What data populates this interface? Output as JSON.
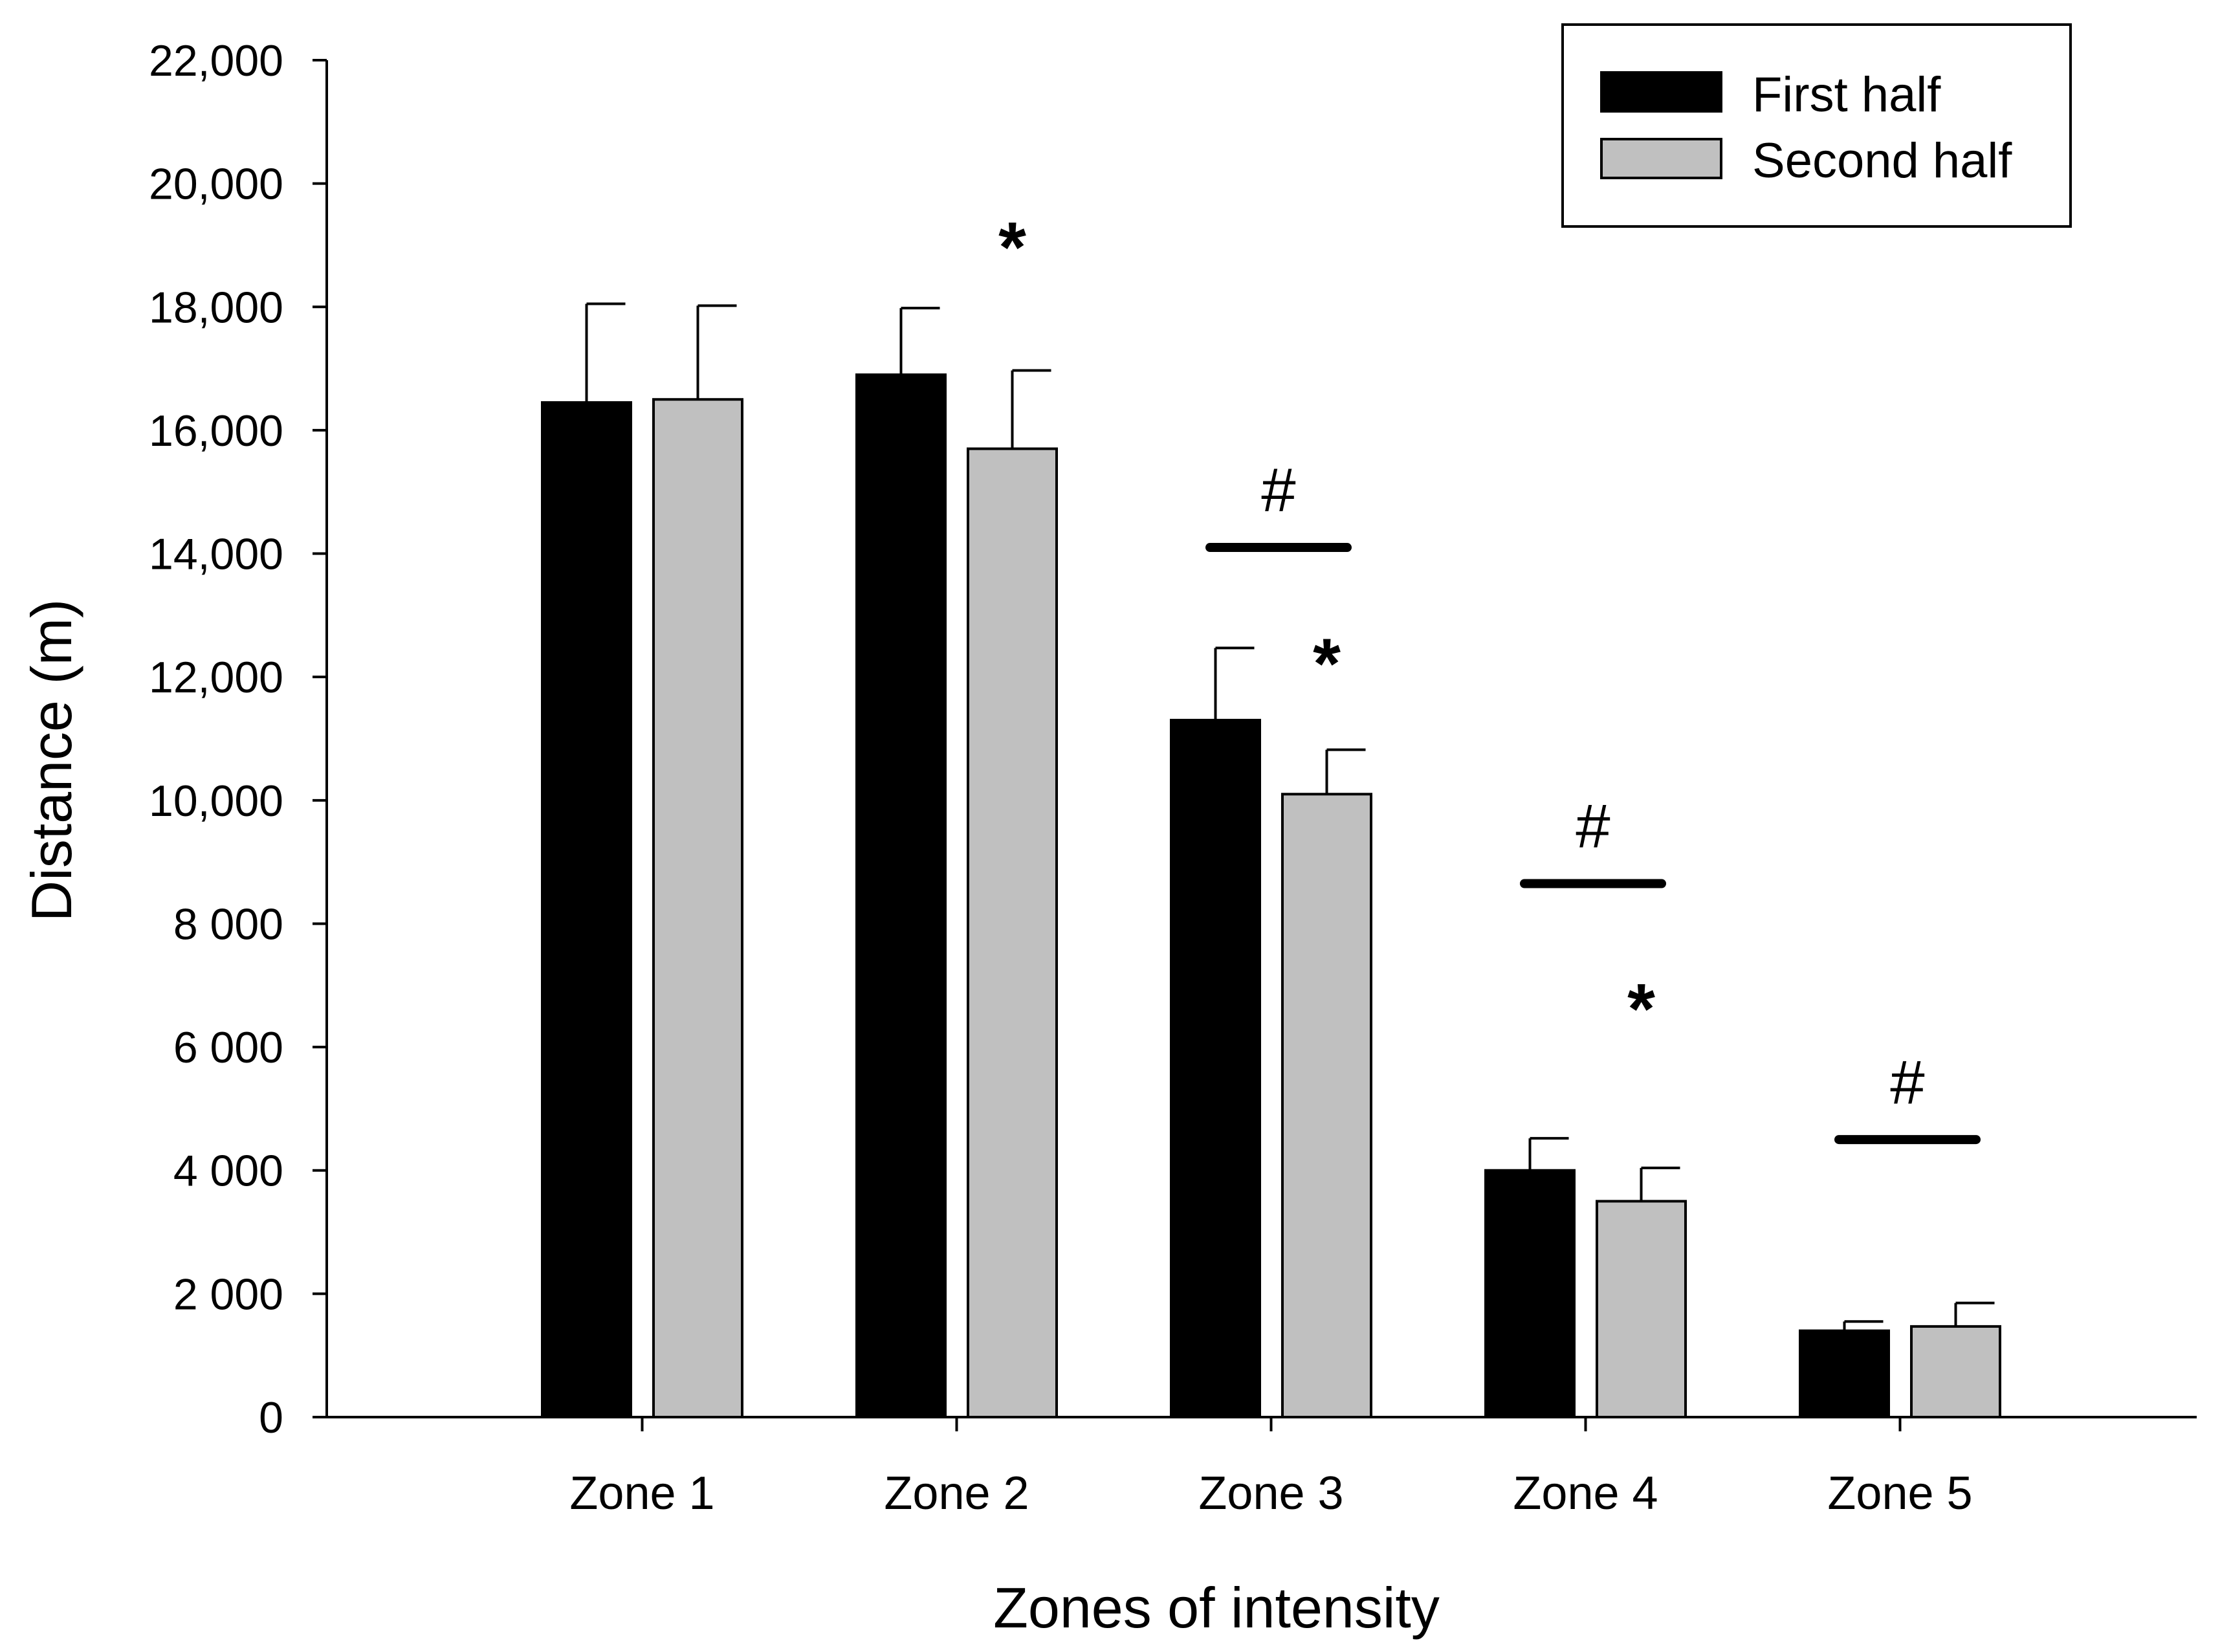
{
  "chart_data": {
    "type": "bar",
    "title": "",
    "xlabel": "Zones of intensity",
    "ylabel": "Distance (m)",
    "ylim": [
      0,
      22000
    ],
    "yticks": [
      {
        "value": 0,
        "label": "0"
      },
      {
        "value": 2000,
        "label": "2 000"
      },
      {
        "value": 4000,
        "label": "4 000"
      },
      {
        "value": 6000,
        "label": "6 000"
      },
      {
        "value": 8000,
        "label": "8 000"
      },
      {
        "value": 10000,
        "label": "10,000"
      },
      {
        "value": 12000,
        "label": "12,000"
      },
      {
        "value": 14000,
        "label": "14,000"
      },
      {
        "value": 16000,
        "label": "16,000"
      },
      {
        "value": 18000,
        "label": "18,000"
      },
      {
        "value": 20000,
        "label": "20,000"
      },
      {
        "value": 22000,
        "label": "22,000"
      }
    ],
    "categories": [
      "Zone 1",
      "Zone 2",
      "Zone 3",
      "Zone 4",
      "Zone 5"
    ],
    "series": [
      {
        "name": "First half",
        "color": "#000000",
        "values": [
          16450,
          16900,
          11300,
          4000,
          1400
        ],
        "error": [
          1600,
          1080,
          1170,
          520,
          150
        ]
      },
      {
        "name": "Second half",
        "color": "#c0c0c0",
        "values": [
          16500,
          15700,
          10100,
          3500,
          1470
        ],
        "error": [
          1520,
          1270,
          720,
          540,
          380
        ]
      }
    ],
    "legend": {
      "position": "top-right"
    },
    "annotations": {
      "star_symbol": "*",
      "hash_symbol": "#",
      "stars": [
        {
          "category": 1,
          "series": 1,
          "y": 19200
        },
        {
          "category": 2,
          "series": 1,
          "y": 12450
        },
        {
          "category": 3,
          "series": 1,
          "y": 6850
        }
      ],
      "hashes": [
        {
          "category": 2,
          "line_y": 14100,
          "label_y": 15000
        },
        {
          "category": 3,
          "line_y": 8650,
          "label_y": 9550
        },
        {
          "category": 4,
          "line_y": 4500,
          "label_y": 5400
        }
      ]
    }
  }
}
